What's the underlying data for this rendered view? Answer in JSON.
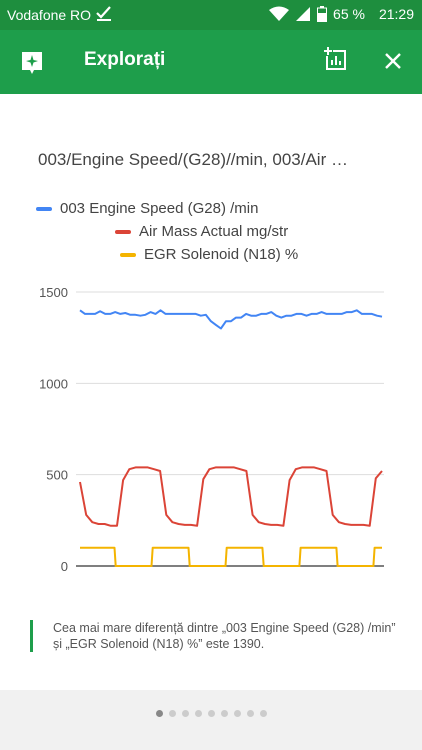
{
  "status_bar": {
    "carrier": "Vodafone RO",
    "battery": "65 %",
    "time": "21:29"
  },
  "app_bar": {
    "title": "Explorați",
    "icons": [
      "explore-icon",
      "insert-chart-icon",
      "close-icon"
    ]
  },
  "card": {
    "chart_title": "003/Engine Speed/(G28)//min, 003/Air …"
  },
  "chart_data": {
    "type": "line",
    "ylim": [
      0,
      1500
    ],
    "yticks": [
      "1500",
      "1000",
      "500",
      "0"
    ],
    "series": [
      {
        "name": "003 Engine Speed (G28) /min",
        "color": "#4285f4",
        "values": [
          1400,
          1380,
          1380,
          1380,
          1395,
          1380,
          1380,
          1390,
          1380,
          1385,
          1375,
          1375,
          1370,
          1375,
          1390,
          1380,
          1400,
          1380,
          1380,
          1380,
          1380,
          1380,
          1380,
          1380,
          1370,
          1375,
          1340,
          1320,
          1300,
          1340,
          1340,
          1360,
          1360,
          1380,
          1370,
          1370,
          1380,
          1380,
          1390,
          1370,
          1360,
          1370,
          1370,
          1380,
          1380,
          1370,
          1380,
          1380,
          1390,
          1380,
          1380,
          1380,
          1380,
          1390,
          1390,
          1400,
          1380,
          1380,
          1380,
          1370,
          1365
        ]
      },
      {
        "name": "Air Mass Actual mg/str",
        "color": "#db4437",
        "values": [
          460,
          280,
          240,
          230,
          230,
          220,
          220,
          470,
          530,
          540,
          540,
          540,
          530,
          520,
          280,
          240,
          230,
          225,
          225,
          220,
          475,
          530,
          540,
          540,
          540,
          540,
          530,
          520,
          280,
          240,
          230,
          225,
          225,
          220,
          470,
          530,
          540,
          540,
          540,
          530,
          520,
          280,
          240,
          230,
          225,
          225,
          225,
          220,
          480,
          520
        ]
      },
      {
        "name": "EGR Solenoid (N18) %",
        "color": "#f4b400",
        "values": [
          100,
          100,
          100,
          100,
          100,
          100,
          0,
          0,
          0,
          0,
          0,
          0,
          100,
          100,
          100,
          100,
          100,
          100,
          0,
          0,
          0,
          0,
          0,
          0,
          100,
          100,
          100,
          100,
          100,
          100,
          0,
          0,
          0,
          0,
          0,
          0,
          100,
          100,
          100,
          100,
          100,
          100,
          0,
          0,
          0,
          0,
          0,
          0,
          100,
          100
        ]
      }
    ]
  },
  "insight": {
    "text": "Cea mai mare diferență dintre „003 Engine Speed (G28) /min” și „EGR Solenoid (N18) %” este 1390."
  },
  "pager": {
    "count": 9,
    "active": 0
  }
}
